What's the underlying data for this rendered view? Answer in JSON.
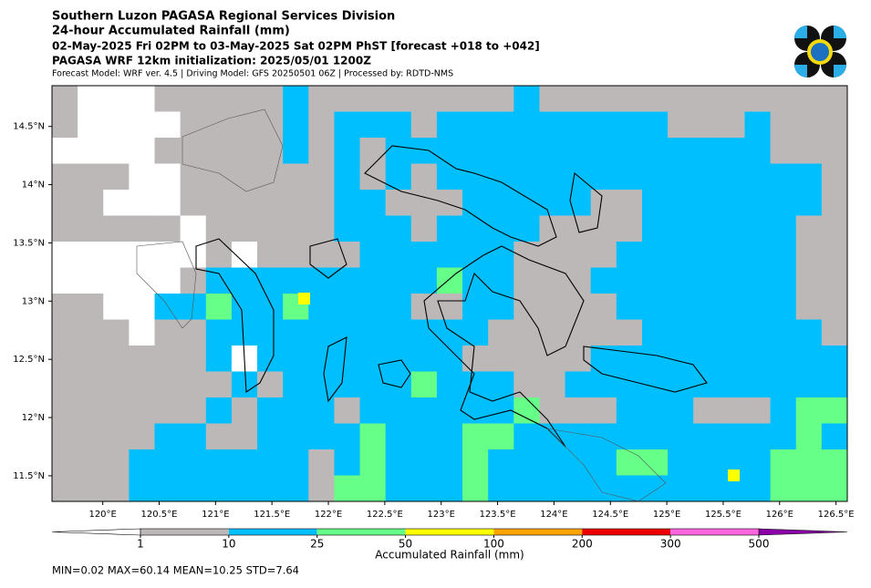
{
  "header": {
    "title": "Southern Luzon PAGASA Regional Services Division",
    "subtitle": "24-hour Accumulated Rainfall (mm)",
    "period": "02-May-2025 Fri 02PM to 03-May-2025 Sat 02PM PhST [forecast +018 to +042]",
    "model_line": "PAGASA WRF 12km initialization: 2025/05/01 1200Z",
    "info": "Forecast Model: WRF ver. 4.5 | Driving Model: GFS 20250501 06Z | Processed by: RDTD-NMS"
  },
  "map": {
    "xlim": [
      119.55,
      126.6
    ],
    "ylim": [
      11.28,
      14.85
    ],
    "xticks": [
      {
        "value": 120,
        "label": "120°E"
      },
      {
        "value": 120.5,
        "label": "120.5°E"
      },
      {
        "value": 121,
        "label": "121°E"
      },
      {
        "value": 121.5,
        "label": "121.5°E"
      },
      {
        "value": 122,
        "label": "122°E"
      },
      {
        "value": 122.5,
        "label": "122.5°E"
      },
      {
        "value": 123,
        "label": "123°E"
      },
      {
        "value": 123.5,
        "label": "123.5°E"
      },
      {
        "value": 124,
        "label": "124°E"
      },
      {
        "value": 124.5,
        "label": "124.5°E"
      },
      {
        "value": 125,
        "label": "125°E"
      },
      {
        "value": 125.5,
        "label": "125.5°E"
      },
      {
        "value": 126,
        "label": "126°E"
      },
      {
        "value": 126.5,
        "label": "126.5°E"
      }
    ],
    "yticks": [
      {
        "value": 11.5,
        "label": "11.5°N"
      },
      {
        "value": 12,
        "label": "12°N"
      },
      {
        "value": 12.5,
        "label": "12.5°N"
      },
      {
        "value": 13,
        "label": "13°N"
      },
      {
        "value": 13.5,
        "label": "13.5°N"
      },
      {
        "value": 14,
        "label": "14°N"
      },
      {
        "value": 14.5,
        "label": "14.5°N"
      }
    ]
  },
  "colorbar": {
    "label": "Accumulated Rainfall (mm)",
    "ticks": [
      1,
      10,
      25,
      50,
      100,
      200,
      300,
      500
    ],
    "colors": [
      "#bcb8b8",
      "#00bfff",
      "#66ff88",
      "#ffff00",
      "#ffa500",
      "#ee0000",
      "#ff66dd"
    ],
    "under_color": "#ffffff",
    "over_color": "#8b00a8"
  },
  "stats": "MIN=0.02   MAX=60.14   MEAN=10.25   STD=7.64"
}
